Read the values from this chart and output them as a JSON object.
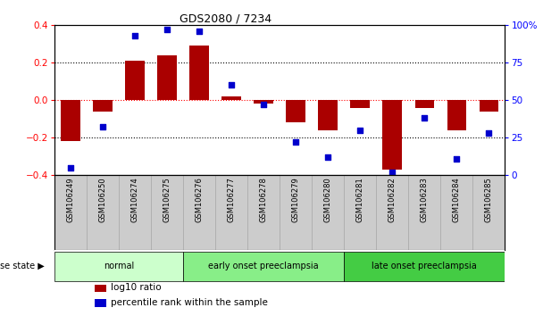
{
  "title": "GDS2080 / 7234",
  "samples": [
    "GSM106249",
    "GSM106250",
    "GSM106274",
    "GSM106275",
    "GSM106276",
    "GSM106277",
    "GSM106278",
    "GSM106279",
    "GSM106280",
    "GSM106281",
    "GSM106282",
    "GSM106283",
    "GSM106284",
    "GSM106285"
  ],
  "log10_ratio": [
    -0.22,
    -0.06,
    0.21,
    0.24,
    0.29,
    0.02,
    -0.02,
    -0.12,
    -0.16,
    -0.04,
    -0.37,
    -0.04,
    -0.16,
    -0.06
  ],
  "percentile_rank": [
    5,
    32,
    93,
    97,
    96,
    60,
    47,
    22,
    12,
    30,
    2,
    38,
    11,
    28
  ],
  "groups": [
    {
      "label": "normal",
      "start": 0,
      "end": 4,
      "color": "#ccffcc"
    },
    {
      "label": "early onset preeclampsia",
      "start": 4,
      "end": 9,
      "color": "#88ee88"
    },
    {
      "label": "late onset preeclampsia",
      "start": 9,
      "end": 14,
      "color": "#44cc44"
    }
  ],
  "bar_color": "#aa0000",
  "dot_color": "#0000cc",
  "ylim_left": [
    -0.4,
    0.4
  ],
  "ylim_right": [
    0,
    100
  ],
  "left_yticks": [
    -0.4,
    -0.2,
    0.0,
    0.2,
    0.4
  ],
  "right_yticks": [
    0,
    25,
    50,
    75,
    100
  ],
  "right_yticklabels": [
    "0",
    "25",
    "50",
    "75",
    "100%"
  ],
  "dotted_lines": [
    -0.2,
    0.2
  ],
  "red_dotted_line": 0.0,
  "background_color": "#ffffff",
  "label_bg_color": "#cccccc",
  "legend_colors": [
    "#aa0000",
    "#0000cc"
  ],
  "legend_labels": [
    "log10 ratio",
    "percentile rank within the sample"
  ],
  "disease_state_label": "disease state",
  "arrow": "▶"
}
